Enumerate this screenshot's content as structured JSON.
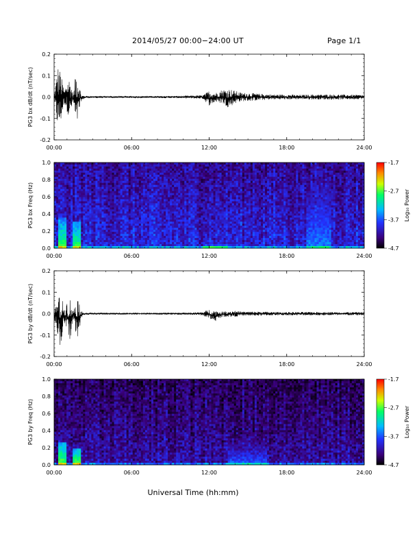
{
  "header": {
    "title": "2014/05/27  00:00−24:00 UT",
    "page": "Page 1/1"
  },
  "colors": {
    "trace": "#000000",
    "axis": "#000000",
    "spectrogram_cmap": [
      "#000000",
      "#3a007a",
      "#2233ff",
      "#00bbff",
      "#00ff66",
      "#ccff00",
      "#ff8800",
      "#ff0000"
    ]
  },
  "xlabel": "Universal Time (hh:mm)",
  "chart_data": [
    {
      "type": "line",
      "ylabel": "PG3 bx dB/dt (nT/sec)",
      "xlim": [
        0,
        24
      ],
      "ylim": [
        -0.2,
        0.2
      ],
      "xticks": [
        "00:00",
        "06:00",
        "12:00",
        "18:00",
        "24:00"
      ],
      "yticks": [
        "0.2",
        "0.1",
        "0.0",
        "-0.1",
        "-0.2"
      ],
      "envelope": {
        "x_hours": [
          0.0,
          0.3,
          0.5,
          0.8,
          1.0,
          1.2,
          1.5,
          1.7,
          1.9,
          2.1,
          2.4,
          3.0,
          4.0,
          6.0,
          8.0,
          10.0,
          11.0,
          11.5,
          12.0,
          12.5,
          13.0,
          13.5,
          14.0,
          14.5,
          15.0,
          16.0,
          17.0,
          18.0,
          19.0,
          20.0,
          22.0,
          24.0
        ],
        "max": [
          0.01,
          0.15,
          0.12,
          0.03,
          0.08,
          0.09,
          0.01,
          0.14,
          0.08,
          0.01,
          0.005,
          0.005,
          0.004,
          0.004,
          0.004,
          0.006,
          0.008,
          0.008,
          0.03,
          0.02,
          0.035,
          0.04,
          0.03,
          0.02,
          0.02,
          0.015,
          0.012,
          0.012,
          0.01,
          0.012,
          0.012,
          0.01
        ],
        "min": [
          -0.02,
          -0.16,
          -0.13,
          -0.03,
          -0.07,
          -0.1,
          -0.02,
          -0.17,
          -0.09,
          -0.02,
          -0.005,
          -0.005,
          -0.004,
          -0.004,
          -0.004,
          -0.006,
          -0.008,
          -0.008,
          -0.04,
          -0.025,
          -0.03,
          -0.05,
          -0.03,
          -0.02,
          -0.02,
          -0.015,
          -0.012,
          -0.012,
          -0.01,
          -0.012,
          -0.012,
          -0.01
        ]
      }
    },
    {
      "type": "heatmap",
      "ylabel": "PG3 bx Freq (Hz)",
      "cbar_label": "Log₁₀ Power",
      "xlim": [
        0,
        24
      ],
      "ylim": [
        0,
        1.0
      ],
      "xticks": [
        "00:00",
        "06:00",
        "12:00",
        "18:00",
        "24:00"
      ],
      "yticks": [
        "1.0",
        "0.8",
        "0.6",
        "0.4",
        "0.2",
        "0.0"
      ],
      "cbar_range": [
        -4.7,
        -1.7
      ],
      "cbar_ticks": [
        "-1.7",
        "-2.7",
        "-3.7",
        "-4.7"
      ],
      "background_level": -4.1,
      "bursts": [
        {
          "t": [
            0.3,
            1.0
          ],
          "f_max": 0.35,
          "level": -2.9
        },
        {
          "t": [
            1.5,
            2.1
          ],
          "f_max": 0.3,
          "level": -2.9
        },
        {
          "t": [
            11.5,
            13.5
          ],
          "f_max": 0.05,
          "level": -3.3
        },
        {
          "t": [
            19.5,
            21.5
          ],
          "f_max": 0.8,
          "level": -3.6
        }
      ]
    },
    {
      "type": "line",
      "ylabel": "PG3 by dB/dt (nT/sec)",
      "xlim": [
        0,
        24
      ],
      "ylim": [
        -0.2,
        0.2
      ],
      "xticks": [
        "00:00",
        "06:00",
        "12:00",
        "18:00",
        "24:00"
      ],
      "yticks": [
        "0.2",
        "0.1",
        "0.0",
        "-0.1",
        "-0.2"
      ],
      "envelope": {
        "x_hours": [
          0.0,
          0.3,
          0.5,
          0.8,
          1.0,
          1.2,
          1.5,
          1.7,
          1.9,
          2.1,
          2.4,
          3.0,
          4.0,
          6.0,
          8.0,
          10.0,
          11.0,
          11.5,
          12.0,
          12.5,
          13.0,
          13.5,
          14.0,
          14.5,
          15.0,
          16.0,
          17.0,
          18.0,
          19.0,
          20.0,
          22.0,
          24.0
        ],
        "max": [
          0.01,
          0.07,
          0.09,
          0.03,
          0.06,
          0.08,
          0.01,
          0.085,
          0.07,
          0.01,
          0.005,
          0.004,
          0.004,
          0.004,
          0.004,
          0.005,
          0.006,
          0.008,
          0.02,
          0.015,
          0.01,
          0.012,
          0.015,
          0.01,
          0.01,
          0.01,
          0.008,
          0.008,
          0.008,
          0.008,
          0.008,
          0.008
        ],
        "min": [
          -0.02,
          -0.1,
          -0.16,
          -0.05,
          -0.08,
          -0.14,
          -0.02,
          -0.12,
          -0.1,
          -0.02,
          -0.005,
          -0.004,
          -0.004,
          -0.004,
          -0.004,
          -0.005,
          -0.006,
          -0.008,
          -0.025,
          -0.035,
          -0.015,
          -0.015,
          -0.015,
          -0.01,
          -0.01,
          -0.01,
          -0.008,
          -0.008,
          -0.008,
          -0.008,
          -0.008,
          -0.008
        ]
      }
    },
    {
      "type": "heatmap",
      "ylabel": "PG3 by Freq (Hz)",
      "cbar_label": "Log₁₀ Power",
      "xlim": [
        0,
        24
      ],
      "ylim": [
        0,
        1.0
      ],
      "xticks": [
        "00:00",
        "06:00",
        "12:00",
        "18:00",
        "24:00"
      ],
      "yticks": [
        "1.0",
        "0.8",
        "0.6",
        "0.4",
        "0.2",
        "0.0"
      ],
      "cbar_range": [
        -4.7,
        -1.7
      ],
      "cbar_ticks": [
        "-1.7",
        "-2.7",
        "-3.7",
        "-4.7"
      ],
      "background_level": -4.3,
      "bursts": [
        {
          "t": [
            0.3,
            1.0
          ],
          "f_max": 0.25,
          "level": -2.8
        },
        {
          "t": [
            1.5,
            2.1
          ],
          "f_max": 0.2,
          "level": -2.8
        },
        {
          "t": [
            13.5,
            16.5
          ],
          "f_max": 0.3,
          "level": -3.7
        }
      ]
    }
  ]
}
